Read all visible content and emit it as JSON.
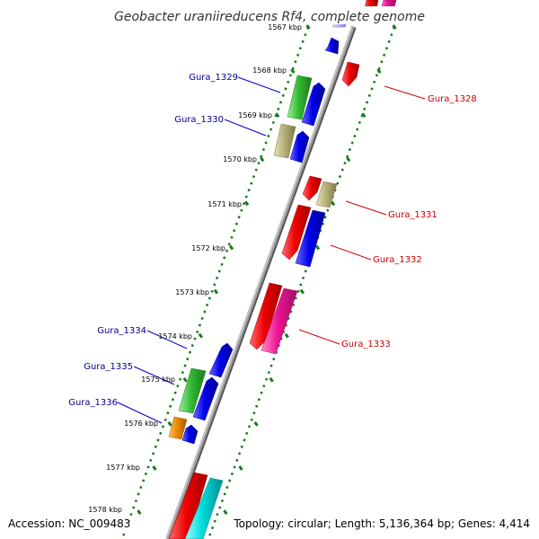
{
  "title": "Geobacter uraniireducens Rf4, complete genome",
  "footer": {
    "accession": "Accession: NC_009483",
    "summary": "Topology: circular; Length: 5,136,364 bp; Genes: 4,414"
  },
  "ticks": [
    "1567 kbp",
    "1568 kbp",
    "1569 kbp",
    "1570 kbp",
    "1571 kbp",
    "1572 kbp",
    "1573 kbp",
    "1574 kbp",
    "1575 kbp",
    "1576 kbp",
    "1577 kbp",
    "1578 kbp"
  ],
  "gene_labels": {
    "forward": [
      "Gura_1329",
      "Gura_1330",
      "Gura_1334",
      "Gura_1335",
      "Gura_1336"
    ],
    "reverse": [
      "Gura_1328",
      "Gura_1331",
      "Gura_1332",
      "Gura_1333"
    ]
  },
  "colors": {
    "forward_label": "#00008b",
    "reverse_label": "#cc0000",
    "backbone": "#8c8c8c",
    "dotted_track": "#1a7a1a",
    "red": "#ee0000",
    "blue": "#0000ee",
    "green": "#33bb33",
    "olive": "#b8b27a",
    "pink": "#ee1493",
    "orange": "#ee8800",
    "cyan": "#00dddd",
    "lavender": "#b0b0ff"
  }
}
